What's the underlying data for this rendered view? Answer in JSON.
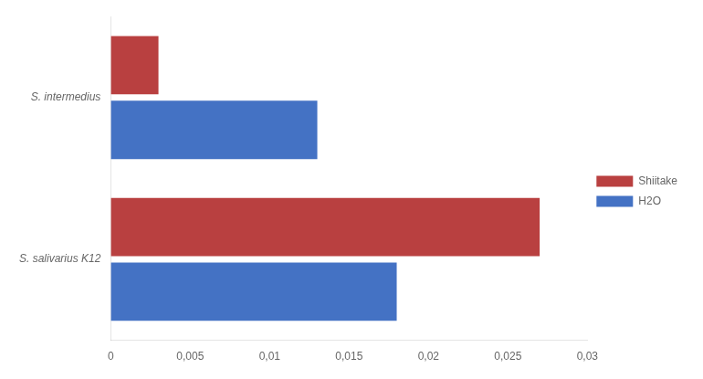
{
  "chart_data": {
    "type": "bar",
    "orientation": "horizontal",
    "categories": [
      "S. intermedius",
      "S. salivarius K12"
    ],
    "series": [
      {
        "name": "Shiitake",
        "color": "#b94040",
        "values": [
          0.003,
          0.027
        ]
      },
      {
        "name": "H2O",
        "color": "#4472c4",
        "values": [
          0.013,
          0.018
        ]
      }
    ],
    "xlim": [
      0,
      0.03
    ],
    "xticks": [
      0,
      {
        "value": 0.005,
        "label": "0,005"
      },
      {
        "value": 0.01,
        "label": "0,01"
      },
      {
        "value": 0.015,
        "label": "0,015"
      },
      {
        "value": 0.02,
        "label": "0,02"
      },
      {
        "value": 0.025,
        "label": "0,025"
      },
      {
        "value": 0.03,
        "label": "0,03"
      }
    ],
    "grid": false,
    "legend": "right"
  }
}
